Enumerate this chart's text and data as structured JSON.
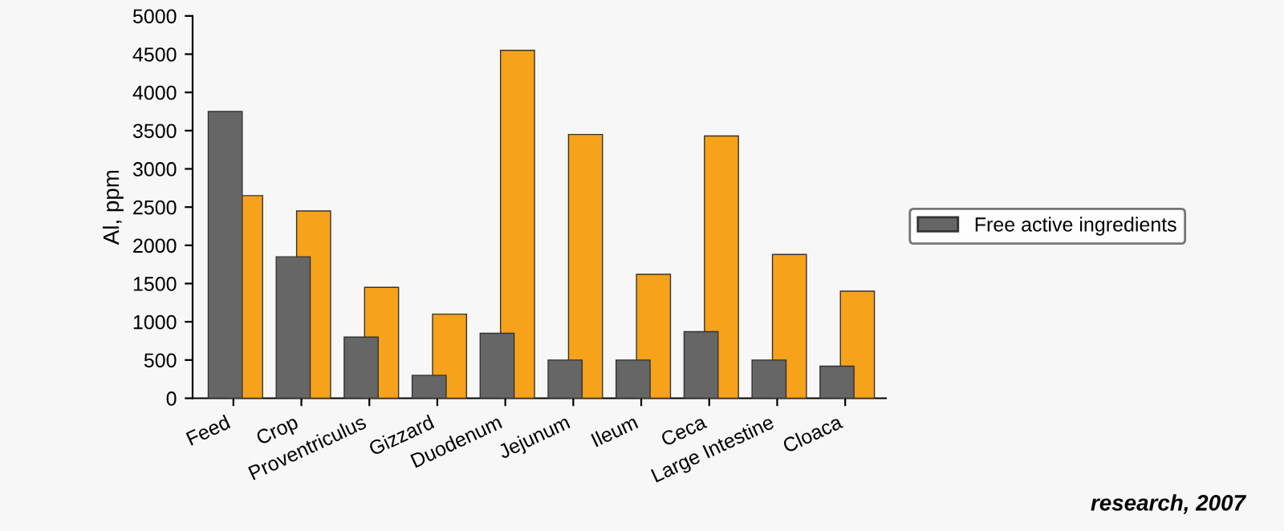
{
  "chart_data": {
    "type": "bar",
    "ylabel": "Al, ppm",
    "categories": [
      "Feed",
      "Crop",
      "Proventriculus",
      "Gizzard",
      "Duodenum",
      "Jejunum",
      "Ileum",
      "Ceca",
      "Large Intestine",
      "Cloaca"
    ],
    "series": [
      {
        "name": "Free active ingredients",
        "color": "#666666",
        "values": [
          3750,
          1850,
          800,
          300,
          850,
          500,
          500,
          870,
          500,
          420
        ]
      },
      {
        "color": "#f7a21b",
        "values": [
          2650,
          2450,
          1450,
          1100,
          4550,
          3450,
          1620,
          3430,
          1880,
          1400
        ]
      }
    ],
    "ylim": [
      0,
      5000
    ],
    "yticks": [
      0,
      500,
      1000,
      1500,
      2000,
      2500,
      3000,
      3500,
      4000,
      4500,
      5000
    ],
    "grid": false,
    "legend": "right",
    "annotations": [
      "research, 2007"
    ]
  }
}
